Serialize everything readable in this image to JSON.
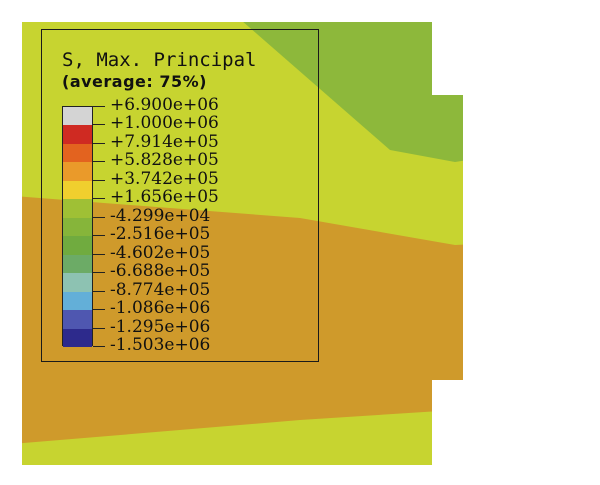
{
  "legend": {
    "title": "S, Max. Principal",
    "subtitle": "(average: 75%)",
    "levels": [
      "+6.900e+06",
      "+1.000e+06",
      "+7.914e+05",
      "+5.828e+05",
      "+3.742e+05",
      "+1.656e+05",
      "-4.299e+04",
      "-2.516e+05",
      "-4.602e+05",
      "-6.688e+05",
      "-8.774e+05",
      "-1.086e+06",
      "-1.295e+06",
      "-1.503e+06"
    ],
    "colors": [
      "#d4d4d4",
      "#cf2a22",
      "#e3631f",
      "#ea9a2a",
      "#f0cf2e",
      "#9fc035",
      "#86b53a",
      "#70ab3f",
      "#6cab66",
      "#8dc2b2",
      "#63afd8",
      "#4f57b0",
      "#2d2a8c"
    ]
  },
  "contour_colors": {
    "yellow_green": "#c7d430",
    "green": "#8db83b",
    "orange": "#cf9a2b",
    "background": "#ffffff"
  }
}
